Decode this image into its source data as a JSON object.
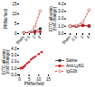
{
  "chart_data": [
    {
      "type": "line",
      "ylabel": "PMNs/field",
      "categories": [
        "Sham",
        "0.5",
        "2",
        "6"
      ],
      "series": [
        {
          "name": "Saline",
          "color": "#333333",
          "values": [
            0.3,
            0.5,
            1.2,
            2.5
          ],
          "marker": "square",
          "line_style": "solid"
        },
        {
          "name": "Anti-Ly6G",
          "color": "#cc2222",
          "values": [
            0.3,
            0.4,
            0.8,
            1.0
          ],
          "marker": "square",
          "line_style": "solid"
        },
        {
          "name": "IgG2b",
          "color": "#cc2222",
          "values": [
            0.3,
            0.6,
            3.5,
            11.5
          ],
          "marker": "open-circle",
          "line_style": "dashed"
        }
      ],
      "ylim": [
        0,
        15
      ],
      "yticks": [
        0,
        5,
        10,
        15
      ]
    },
    {
      "type": "line",
      "ylabel": "FITC-albumin\n(fold change)",
      "categories": [
        "Sham",
        "0.5",
        "2",
        "6"
      ],
      "series": [
        {
          "name": "Saline",
          "color": "#333333",
          "values": [
            1.0,
            1.0,
            1.1,
            1.0
          ],
          "marker": "square",
          "line_style": "solid"
        },
        {
          "name": "Anti-Ly6G",
          "color": "#cc2222",
          "values": [
            1.0,
            1.0,
            1.1,
            1.1
          ],
          "marker": "square",
          "line_style": "solid"
        },
        {
          "name": "IgG2b",
          "color": "#cc2222",
          "values": [
            1.0,
            1.1,
            1.5,
            3.2
          ],
          "marker": "open-circle",
          "line_style": "dashed"
        }
      ],
      "ylim": [
        0,
        4
      ],
      "yticks": [
        0,
        1,
        2,
        3,
        4
      ]
    },
    {
      "type": "scatter",
      "xlabel": "PMNs/field",
      "ylabel": "FITC-albumin\n(fold change)",
      "series": [
        {
          "type": "scatter",
          "color": "#cc2222",
          "x": [
            0.5,
            1.0,
            1.5,
            2.0,
            2.5,
            3.0,
            4.0,
            5.0,
            6.0,
            7.0,
            8.0,
            10.0,
            11.5
          ],
          "values": [
            1.0,
            1.1,
            1.0,
            1.2,
            1.3,
            1.5,
            1.8,
            2.0,
            2.4,
            2.6,
            2.8,
            3.2,
            3.5
          ]
        },
        {
          "type": "regression",
          "color": "#cc2222"
        }
      ],
      "xlim": [
        0,
        15
      ],
      "xticks": [
        0,
        5,
        10,
        15
      ],
      "ylim": [
        0,
        4
      ],
      "yticks": [
        0,
        1,
        2,
        3,
        4
      ]
    }
  ]
}
